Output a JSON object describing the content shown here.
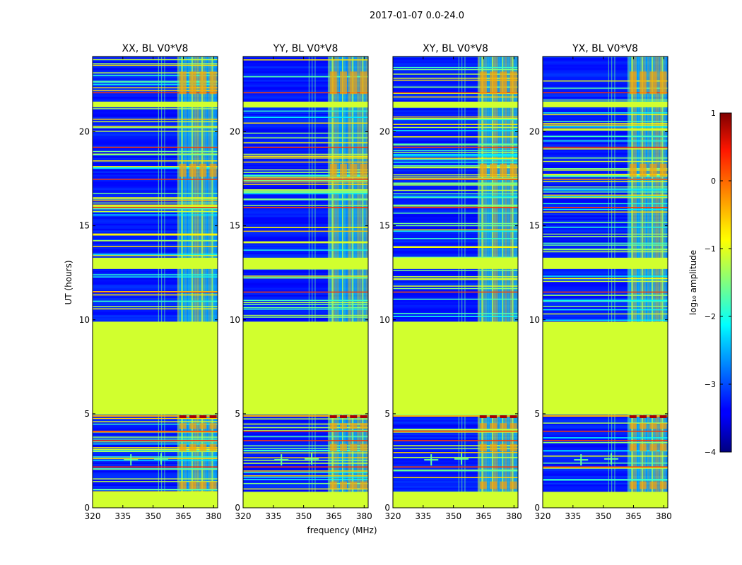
{
  "chart_data": {
    "type": "heatmap",
    "suptitle": "2017-01-07 0.0-24.0",
    "xlabel": "frequency (MHz)",
    "ylabel": "UT (hours)",
    "xlim": [
      320,
      382
    ],
    "ylim": [
      0,
      24
    ],
    "xticks": [
      {
        "value": 320,
        "label": "320"
      },
      {
        "value": 335,
        "label": "335"
      },
      {
        "value": 350,
        "label": "350"
      },
      {
        "value": 365,
        "label": "365"
      },
      {
        "value": 380,
        "label": "380"
      }
    ],
    "yticks": [
      {
        "value": 0,
        "label": "0"
      },
      {
        "value": 5,
        "label": "5"
      },
      {
        "value": 10,
        "label": "10"
      },
      {
        "value": 15,
        "label": "15"
      },
      {
        "value": 20,
        "label": "20"
      }
    ],
    "panels": [
      {
        "title": "XX, BL V0*V8",
        "pol": "XX",
        "baseline": "V0*V8"
      },
      {
        "title": "YY, BL V0*V8",
        "pol": "YY",
        "baseline": "V0*V8"
      },
      {
        "title": "XY, BL V0*V8",
        "pol": "XY",
        "baseline": "V0*V8"
      },
      {
        "title": "YX, BL V0*V8",
        "pol": "YX",
        "baseline": "V0*V8"
      }
    ],
    "flagged_time_ranges_hours": [
      [
        0.0,
        0.85
      ],
      [
        4.95,
        9.9
      ],
      [
        12.7,
        13.3
      ],
      [
        21.3,
        21.6
      ]
    ],
    "flagged_value_log10": -1.1,
    "background_value_log10": -3.3,
    "rfi_band_mhz": [
      362,
      381
    ],
    "notes": "Broadband bright rows at ~4.85 h; point source near 339 MHz at ~2.55 h",
    "colorbar": {
      "label": "log₁₀ amplitude",
      "min": -4,
      "max": 1,
      "ticks": [
        {
          "value": 1,
          "label": "1"
        },
        {
          "value": 0,
          "label": "0"
        },
        {
          "value": -1,
          "label": "−1"
        },
        {
          "value": -2,
          "label": "−2"
        },
        {
          "value": -3,
          "label": "−3"
        },
        {
          "value": -4,
          "label": "−4"
        }
      ],
      "colormap": "jet"
    }
  }
}
